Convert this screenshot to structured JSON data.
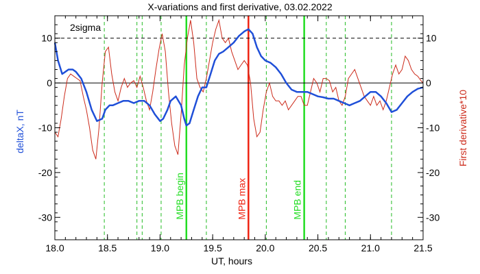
{
  "chart_data": {
    "type": "line",
    "title": "X-variations and first derivative, 03.02.2022",
    "xlabel": "UT, hours",
    "ylabel_left": "deltaX, nT",
    "ylabel_right": "First derivative*10",
    "xlim": [
      18.0,
      21.5
    ],
    "ylim": [
      -35,
      15
    ],
    "x_ticks": [
      "18.0",
      "18.5",
      "19.0",
      "19.5",
      "20.0",
      "20.5",
      "21.0",
      "21.5"
    ],
    "y_ticks": [
      "10",
      "0",
      "-10",
      "-20",
      "-30"
    ],
    "threshold": {
      "label": "2sigma",
      "value": 10
    },
    "colors": {
      "deltaX": "#1f4fd8",
      "derivative": "#cc2a1a",
      "mpb_boundary": "#22dd22",
      "mpb_max": "#ee2211",
      "dashed_markers": "#22bb22"
    },
    "markers": [
      {
        "label": "MPB begin",
        "x": 19.25,
        "kind": "boundary"
      },
      {
        "label": "MPB max",
        "x": 19.84,
        "kind": "max"
      },
      {
        "label": "MPB end",
        "x": 20.37,
        "kind": "boundary"
      }
    ],
    "dashed_markers_x": [
      18.47,
      18.78,
      18.83,
      19.01,
      19.44,
      20.01,
      20.58,
      20.76,
      21.2
    ],
    "series": [
      {
        "name": "deltaX",
        "x": [
          18.0,
          18.03,
          18.07,
          18.1,
          18.13,
          18.17,
          18.2,
          18.25,
          18.3,
          18.35,
          18.4,
          18.45,
          18.48,
          18.52,
          18.55,
          18.6,
          18.65,
          18.7,
          18.75,
          18.8,
          18.85,
          18.9,
          18.95,
          19.0,
          19.03,
          19.07,
          19.1,
          19.15,
          19.2,
          19.23,
          19.25,
          19.28,
          19.32,
          19.36,
          19.4,
          19.44,
          19.48,
          19.52,
          19.56,
          19.6,
          19.65,
          19.7,
          19.75,
          19.8,
          19.84,
          19.88,
          19.92,
          19.96,
          20.0,
          20.05,
          20.1,
          20.15,
          20.2,
          20.25,
          20.3,
          20.35,
          20.4,
          20.45,
          20.5,
          20.55,
          20.6,
          20.65,
          20.7,
          20.75,
          20.8,
          20.85,
          20.9,
          20.95,
          21.0,
          21.05,
          21.1,
          21.15,
          21.2,
          21.25,
          21.3,
          21.35,
          21.4,
          21.45,
          21.5
        ],
        "values": [
          9,
          5,
          2,
          2.5,
          3,
          3,
          2.5,
          1,
          -2,
          -6,
          -8.5,
          -8,
          -6,
          -5,
          -5,
          -4.5,
          -4,
          -4,
          -4.5,
          -4,
          -4,
          -5,
          -7,
          -8.5,
          -8,
          -6,
          -4,
          -3,
          -5,
          -8,
          -9.5,
          -9,
          -6,
          -3,
          -1,
          -1,
          2,
          5,
          6.5,
          7,
          8,
          9,
          10.5,
          11.5,
          12,
          11,
          8,
          6,
          5,
          4.5,
          3.5,
          2,
          0,
          -1.5,
          -2,
          -2,
          -2,
          -2.5,
          -3,
          -3.2,
          -3.5,
          -3.5,
          -4,
          -4.5,
          -5,
          -4.5,
          -4,
          -3,
          -2,
          -2,
          -3,
          -4.5,
          -6.5,
          -6,
          -4.5,
          -3,
          -2,
          -1.3,
          -1
        ]
      },
      {
        "name": "First derivative*10",
        "x": [
          18.0,
          18.03,
          18.06,
          18.09,
          18.12,
          18.15,
          18.18,
          18.21,
          18.24,
          18.27,
          18.3,
          18.33,
          18.36,
          18.39,
          18.42,
          18.45,
          18.48,
          18.51,
          18.54,
          18.57,
          18.6,
          18.63,
          18.66,
          18.69,
          18.72,
          18.75,
          18.78,
          18.81,
          18.84,
          18.87,
          18.9,
          18.93,
          18.96,
          18.99,
          19.02,
          19.05,
          19.08,
          19.11,
          19.14,
          19.17,
          19.2,
          19.23,
          19.26,
          19.29,
          19.32,
          19.35,
          19.38,
          19.41,
          19.44,
          19.47,
          19.5,
          19.53,
          19.56,
          19.59,
          19.62,
          19.65,
          19.68,
          19.71,
          19.74,
          19.77,
          19.8,
          19.83,
          19.86,
          19.89,
          19.92,
          19.95,
          19.98,
          20.01,
          20.04,
          20.07,
          20.1,
          20.13,
          20.16,
          20.19,
          20.22,
          20.25,
          20.28,
          20.31,
          20.34,
          20.37,
          20.4,
          20.43,
          20.46,
          20.49,
          20.52,
          20.55,
          20.58,
          20.61,
          20.64,
          20.67,
          20.7,
          20.73,
          20.76,
          20.79,
          20.82,
          20.85,
          20.88,
          20.91,
          20.94,
          20.97,
          21.0,
          21.03,
          21.06,
          21.09,
          21.12,
          21.15,
          21.18,
          21.21,
          21.24,
          21.27,
          21.3,
          21.33,
          21.36,
          21.39,
          21.42,
          21.45,
          21.48,
          21.5
        ],
        "values": [
          -11,
          -12,
          -8,
          -3,
          1,
          2,
          1.5,
          1,
          0.5,
          -3,
          -6,
          -10,
          -15,
          -17,
          -10,
          0,
          7,
          8,
          2,
          -2,
          -4,
          -1,
          1,
          -1,
          0,
          0.5,
          -1,
          1.5,
          -1,
          -4,
          -6,
          -2,
          3,
          7.5,
          11,
          7,
          -2,
          -9,
          -14,
          -16,
          -7,
          4,
          10,
          14,
          9,
          1,
          -1,
          -2,
          1,
          5,
          9,
          12,
          14,
          10,
          9,
          10,
          7,
          5,
          3,
          4,
          5,
          4,
          0,
          -8,
          -12,
          -11,
          -6,
          -2,
          0,
          -3,
          -4,
          -4,
          -5,
          -4,
          -6,
          -5,
          -4,
          -3,
          -3,
          -5,
          -5,
          -2,
          1,
          0,
          -2,
          1,
          1,
          0.5,
          -2,
          -1,
          -4,
          -5,
          -3,
          1,
          2,
          3,
          1,
          -1,
          -3,
          -4,
          -5,
          -3,
          -5,
          -4,
          -6,
          -4,
          -1,
          2,
          4,
          2,
          3,
          6,
          5,
          3,
          2,
          1.5,
          0.5,
          0
        ]
      }
    ]
  }
}
